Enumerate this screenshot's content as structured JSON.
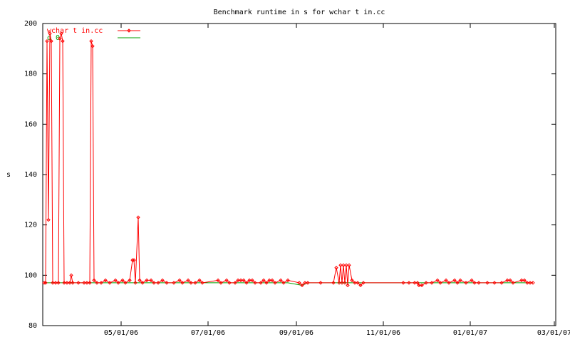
{
  "chart_data": {
    "type": "line",
    "title": "Benchmark runtime in s for wchar t in.cc",
    "y_label": "s",
    "xlim": [
      "03/07/06",
      "03/02/07"
    ],
    "xticks": [
      "05/01/06",
      "07/01/06",
      "09/01/06",
      "11/01/06",
      "01/01/07",
      "03/01/07"
    ],
    "ylim": [
      80,
      200
    ],
    "yticks": [
      80,
      100,
      120,
      140,
      160,
      180,
      200
    ],
    "grid": false,
    "legend": "top-left",
    "series": [
      {
        "name": "wchar t in.cc",
        "color": "#ff0000",
        "markers": true,
        "x": [
          "03/08/06",
          "03/09/06",
          "03/10/06",
          "03/11/06",
          "03/12/06",
          "03/13/06",
          "03/14/06",
          "03/16/06",
          "03/18/06",
          "03/19/06",
          "03/20/06",
          "03/21/06",
          "03/22/06",
          "03/24/06",
          "03/26/06",
          "03/27/06",
          "03/28/06",
          "04/01/06",
          "04/05/06",
          "04/07/06",
          "04/09/06",
          "04/10/06",
          "04/11/06",
          "04/12/06",
          "04/14/06",
          "04/17/06",
          "04/20/06",
          "04/23/06",
          "04/27/06",
          "04/29/06",
          "05/02/06",
          "05/04/06",
          "05/07/06",
          "05/09/06",
          "05/10/06",
          "05/11/06",
          "05/13/06",
          "05/14/06",
          "05/16/06",
          "05/19/06",
          "05/22/06",
          "05/24/06",
          "05/27/06",
          "05/30/06",
          "06/02/06",
          "06/07/06",
          "06/11/06",
          "06/13/06",
          "06/17/06",
          "06/19/06",
          "06/22/06",
          "06/25/06",
          "06/27/06",
          "07/08/06",
          "07/10/06",
          "07/14/06",
          "07/16/06",
          "07/20/06",
          "07/22/06",
          "07/24/06",
          "07/26/06",
          "07/28/06",
          "07/30/06",
          "08/01/06",
          "08/03/06",
          "08/07/06",
          "08/09/06",
          "08/11/06",
          "08/13/06",
          "08/15/06",
          "08/17/06",
          "08/21/06",
          "08/23/06",
          "08/26/06",
          "09/03/06",
          "09/05/06",
          "09/07/06",
          "09/09/06",
          "09/18/06",
          "09/27/06",
          "09/29/06",
          "10/01/06",
          "10/02/06",
          "10/03/06",
          "10/04/06",
          "10/05/06",
          "10/06/06",
          "10/07/06",
          "10/08/06",
          "10/10/06",
          "10/12/06",
          "10/14/06",
          "10/16/06",
          "10/18/06",
          "11/15/06",
          "11/19/06",
          "11/23/06",
          "11/25/06",
          "11/26/06",
          "11/28/06",
          "12/01/06",
          "12/05/06",
          "12/09/06",
          "12/11/06",
          "12/15/06",
          "12/17/06",
          "12/21/06",
          "12/23/06",
          "12/25/06",
          "12/29/06",
          "01/02/07",
          "01/04/07",
          "01/07/07",
          "01/13/07",
          "01/18/07",
          "01/23/07",
          "01/27/07",
          "01/29/07",
          "01/31/07",
          "02/06/07",
          "02/08/07",
          "02/10/07",
          "02/12/07",
          "02/14/07"
        ],
        "values": [
          97,
          97,
          193,
          122,
          196,
          193,
          97,
          97,
          97,
          194,
          196,
          193,
          97,
          97,
          97,
          100,
          97,
          97,
          97,
          97,
          97,
          193,
          191,
          98,
          97,
          97,
          98,
          97,
          98,
          97,
          98,
          97,
          98,
          106,
          106,
          97,
          123,
          98,
          97,
          98,
          98,
          97,
          97,
          98,
          97,
          97,
          98,
          97,
          98,
          97,
          97,
          98,
          97,
          98,
          97,
          98,
          97,
          97,
          98,
          98,
          98,
          97,
          98,
          98,
          97,
          97,
          98,
          97,
          98,
          98,
          97,
          98,
          97,
          98,
          97,
          96,
          97,
          97,
          97,
          97,
          103,
          97,
          104,
          97,
          104,
          97,
          104,
          96,
          104,
          98,
          97,
          97,
          96,
          97,
          97,
          97,
          97,
          97,
          96,
          96,
          97,
          97,
          98,
          97,
          98,
          97,
          98,
          97,
          98,
          97,
          98,
          97,
          97,
          97,
          97,
          97,
          98,
          98,
          97,
          98,
          98,
          97,
          97,
          97
        ]
      },
      {
        "name": "d 0",
        "color": "#00a000",
        "markers": false,
        "x": [
          "03/08/06",
          "08/26/06",
          "09/05/06",
          "09/09/06",
          "02/14/07"
        ],
        "values": [
          97,
          97,
          96,
          97,
          97
        ]
      }
    ]
  }
}
